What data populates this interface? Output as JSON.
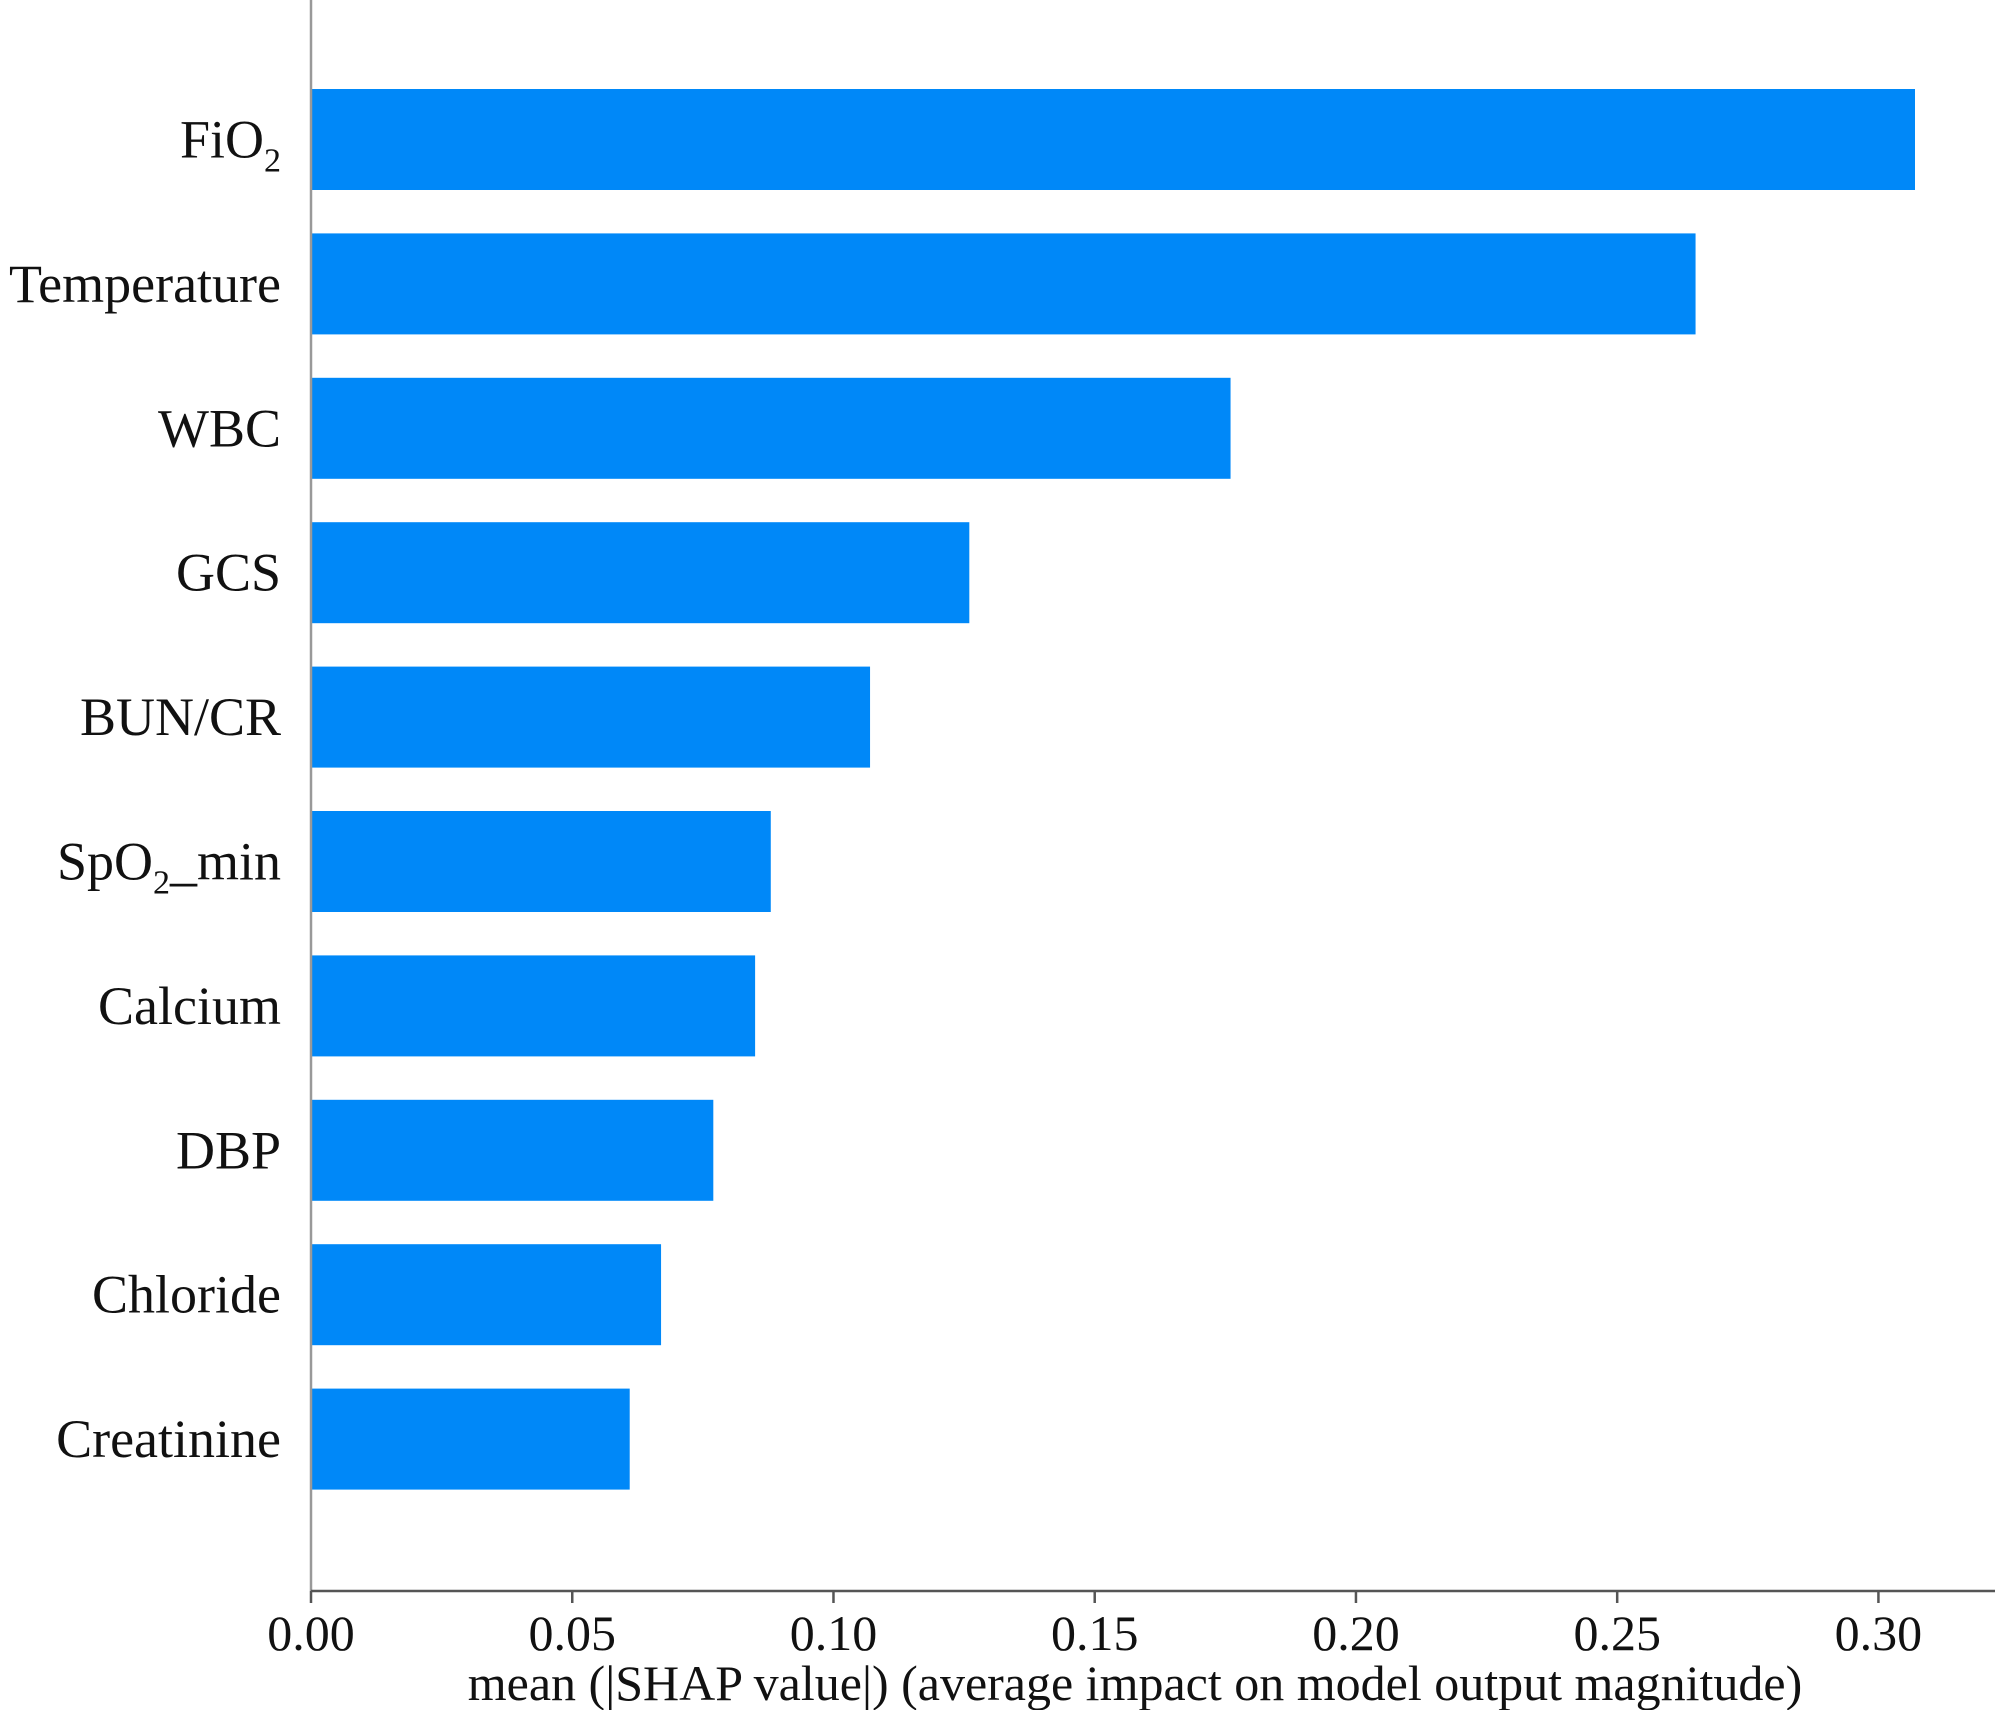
{
  "chart_data": {
    "type": "bar",
    "orientation": "horizontal",
    "categories": [
      "FiO2",
      "Temperature",
      "WBC",
      "GCS",
      "BUN/CR",
      "SpO2_min",
      "Calcium",
      "DBP",
      "Chloride",
      "Creatinine"
    ],
    "category_labels": [
      {
        "base": "FiO",
        "sub": "2",
        "tail": ""
      },
      {
        "base": "Temperature",
        "sub": "",
        "tail": ""
      },
      {
        "base": "WBC",
        "sub": "",
        "tail": ""
      },
      {
        "base": "GCS",
        "sub": "",
        "tail": ""
      },
      {
        "base": "BUN/CR",
        "sub": "",
        "tail": ""
      },
      {
        "base": "SpO",
        "sub": "2",
        "tail": "_min"
      },
      {
        "base": "Calcium",
        "sub": "",
        "tail": ""
      },
      {
        "base": "DBP",
        "sub": "",
        "tail": ""
      },
      {
        "base": "Chloride",
        "sub": "",
        "tail": ""
      },
      {
        "base": "Creatinine",
        "sub": "",
        "tail": ""
      }
    ],
    "values": [
      0.307,
      0.265,
      0.176,
      0.126,
      0.107,
      0.088,
      0.085,
      0.077,
      0.067,
      0.061
    ],
    "xlabel": "mean (|SHAP value|) (average impact on model output magnitude)",
    "ylabel": "",
    "xlim": [
      0,
      0.3226
    ],
    "xticks": [
      "0.00",
      "0.05",
      "0.10",
      "0.15",
      "0.20",
      "0.25",
      "0.30"
    ],
    "grid": false,
    "bar_color": "#0088F8",
    "axis_color": "#999999"
  }
}
